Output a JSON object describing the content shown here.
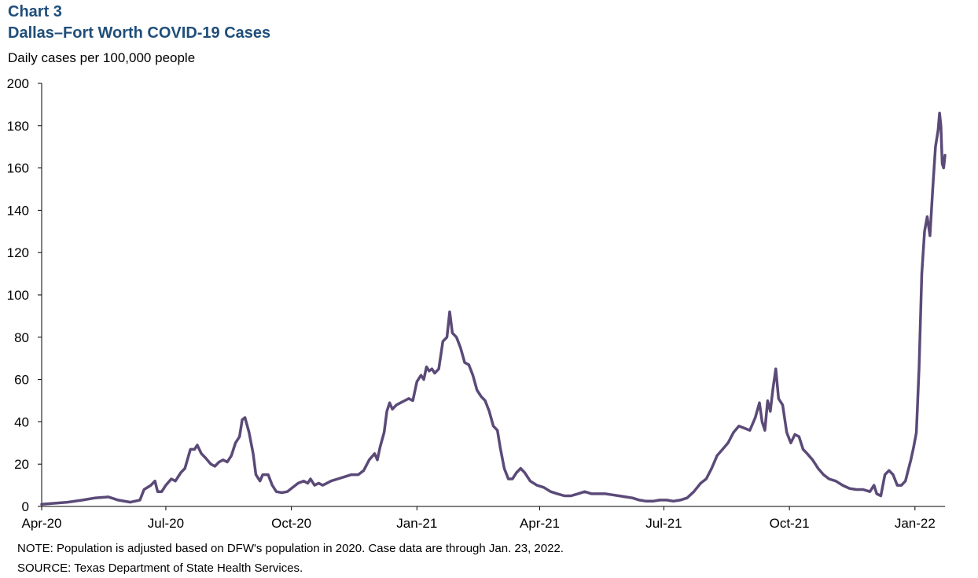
{
  "chart_label": "Chart 3",
  "chart_title": "Dallas–Fort Worth COVID-19 Cases",
  "chart_subtitle": "Daily cases per 100,000 people",
  "note": "NOTE: Population is adjusted based on DFW's population in 2020. Case data are through Jan. 23, 2022.",
  "source": "SOURCE: Texas Department of State Health Services.",
  "chart_data": {
    "type": "line",
    "title": "Dallas–Fort Worth COVID-19 Cases",
    "ylabel": "Daily cases per 100,000 people",
    "xlabel": "",
    "x_range": [
      "2020-04-01",
      "2022-01-23"
    ],
    "ylim": [
      0,
      200
    ],
    "y_ticks": [
      0,
      20,
      40,
      60,
      80,
      100,
      120,
      140,
      160,
      180,
      200
    ],
    "x_ticks": [
      {
        "date": "2020-04-01",
        "label": "Apr-20"
      },
      {
        "date": "2020-07-01",
        "label": "Jul-20"
      },
      {
        "date": "2020-10-01",
        "label": "Oct-20"
      },
      {
        "date": "2021-01-01",
        "label": "Jan-21"
      },
      {
        "date": "2021-04-01",
        "label": "Apr-21"
      },
      {
        "date": "2021-07-01",
        "label": "Jul-21"
      },
      {
        "date": "2021-10-01",
        "label": "Oct-21"
      },
      {
        "date": "2022-01-01",
        "label": "Jan-22"
      }
    ],
    "grid": false,
    "line_color": "#5b4a78",
    "series": [
      {
        "points": [
          [
            "2020-04-01",
            1
          ],
          [
            "2020-04-10",
            1.5
          ],
          [
            "2020-04-20",
            2
          ],
          [
            "2020-05-01",
            3
          ],
          [
            "2020-05-10",
            4
          ],
          [
            "2020-05-20",
            4.5
          ],
          [
            "2020-05-27",
            3
          ],
          [
            "2020-06-05",
            2
          ],
          [
            "2020-06-12",
            3
          ],
          [
            "2020-06-15",
            8
          ],
          [
            "2020-06-20",
            10
          ],
          [
            "2020-06-23",
            12
          ],
          [
            "2020-06-25",
            7
          ],
          [
            "2020-06-28",
            7
          ],
          [
            "2020-07-01",
            10
          ],
          [
            "2020-07-05",
            13
          ],
          [
            "2020-07-08",
            12
          ],
          [
            "2020-07-12",
            16
          ],
          [
            "2020-07-15",
            18
          ],
          [
            "2020-07-19",
            27
          ],
          [
            "2020-07-22",
            27
          ],
          [
            "2020-07-24",
            29
          ],
          [
            "2020-07-27",
            25
          ],
          [
            "2020-07-30",
            23
          ],
          [
            "2020-08-03",
            20
          ],
          [
            "2020-08-06",
            19
          ],
          [
            "2020-08-09",
            21
          ],
          [
            "2020-08-12",
            22
          ],
          [
            "2020-08-15",
            21
          ],
          [
            "2020-08-18",
            24
          ],
          [
            "2020-08-21",
            30
          ],
          [
            "2020-08-24",
            33
          ],
          [
            "2020-08-26",
            41
          ],
          [
            "2020-08-28",
            42
          ],
          [
            "2020-08-31",
            35
          ],
          [
            "2020-09-03",
            25
          ],
          [
            "2020-09-05",
            15
          ],
          [
            "2020-09-08",
            12
          ],
          [
            "2020-09-10",
            15
          ],
          [
            "2020-09-14",
            15
          ],
          [
            "2020-09-17",
            10
          ],
          [
            "2020-09-20",
            7
          ],
          [
            "2020-09-24",
            6.5
          ],
          [
            "2020-09-28",
            7
          ],
          [
            "2020-10-02",
            9
          ],
          [
            "2020-10-06",
            11
          ],
          [
            "2020-10-10",
            12
          ],
          [
            "2020-10-13",
            11
          ],
          [
            "2020-10-15",
            13
          ],
          [
            "2020-10-18",
            10
          ],
          [
            "2020-10-21",
            11
          ],
          [
            "2020-10-24",
            10
          ],
          [
            "2020-10-27",
            11
          ],
          [
            "2020-10-30",
            12
          ],
          [
            "2020-11-04",
            13
          ],
          [
            "2020-11-09",
            14
          ],
          [
            "2020-11-14",
            15
          ],
          [
            "2020-11-19",
            15
          ],
          [
            "2020-11-23",
            17
          ],
          [
            "2020-11-27",
            22
          ],
          [
            "2020-12-01",
            25
          ],
          [
            "2020-12-03",
            22
          ],
          [
            "2020-12-05",
            28
          ],
          [
            "2020-12-08",
            35
          ],
          [
            "2020-12-10",
            45
          ],
          [
            "2020-12-12",
            49
          ],
          [
            "2020-12-14",
            46
          ],
          [
            "2020-12-17",
            48
          ],
          [
            "2020-12-20",
            49
          ],
          [
            "2020-12-23",
            50
          ],
          [
            "2020-12-26",
            51
          ],
          [
            "2020-12-29",
            50
          ],
          [
            "2021-01-01",
            59
          ],
          [
            "2021-01-04",
            62
          ],
          [
            "2021-01-06",
            60
          ],
          [
            "2021-01-08",
            66
          ],
          [
            "2021-01-10",
            64
          ],
          [
            "2021-01-12",
            65
          ],
          [
            "2021-01-14",
            63
          ],
          [
            "2021-01-17",
            65
          ],
          [
            "2021-01-20",
            78
          ],
          [
            "2021-01-23",
            80
          ],
          [
            "2021-01-25",
            92
          ],
          [
            "2021-01-27",
            82
          ],
          [
            "2021-01-30",
            80
          ],
          [
            "2021-02-02",
            75
          ],
          [
            "2021-02-05",
            68
          ],
          [
            "2021-02-08",
            67
          ],
          [
            "2021-02-11",
            62
          ],
          [
            "2021-02-14",
            55
          ],
          [
            "2021-02-17",
            52
          ],
          [
            "2021-02-20",
            50
          ],
          [
            "2021-02-23",
            45
          ],
          [
            "2021-02-26",
            38
          ],
          [
            "2021-03-01",
            36
          ],
          [
            "2021-03-03",
            28
          ],
          [
            "2021-03-06",
            18
          ],
          [
            "2021-03-09",
            13
          ],
          [
            "2021-03-12",
            13
          ],
          [
            "2021-03-15",
            16
          ],
          [
            "2021-03-18",
            18
          ],
          [
            "2021-03-21",
            16
          ],
          [
            "2021-03-25",
            12
          ],
          [
            "2021-03-30",
            10
          ],
          [
            "2021-04-04",
            9
          ],
          [
            "2021-04-09",
            7
          ],
          [
            "2021-04-14",
            6
          ],
          [
            "2021-04-19",
            5
          ],
          [
            "2021-04-24",
            5
          ],
          [
            "2021-04-29",
            6
          ],
          [
            "2021-05-04",
            7
          ],
          [
            "2021-05-09",
            6
          ],
          [
            "2021-05-14",
            6
          ],
          [
            "2021-05-19",
            6
          ],
          [
            "2021-05-24",
            5.5
          ],
          [
            "2021-05-29",
            5
          ],
          [
            "2021-06-03",
            4.5
          ],
          [
            "2021-06-08",
            4
          ],
          [
            "2021-06-13",
            3
          ],
          [
            "2021-06-18",
            2.5
          ],
          [
            "2021-06-23",
            2.5
          ],
          [
            "2021-06-28",
            3
          ],
          [
            "2021-07-03",
            3
          ],
          [
            "2021-07-08",
            2.5
          ],
          [
            "2021-07-13",
            3
          ],
          [
            "2021-07-18",
            4
          ],
          [
            "2021-07-23",
            7
          ],
          [
            "2021-07-28",
            11
          ],
          [
            "2021-08-01",
            13
          ],
          [
            "2021-08-05",
            18
          ],
          [
            "2021-08-09",
            24
          ],
          [
            "2021-08-13",
            27
          ],
          [
            "2021-08-17",
            30
          ],
          [
            "2021-08-21",
            35
          ],
          [
            "2021-08-25",
            38
          ],
          [
            "2021-08-29",
            37
          ],
          [
            "2021-09-02",
            36
          ],
          [
            "2021-09-06",
            42
          ],
          [
            "2021-09-09",
            49
          ],
          [
            "2021-09-11",
            40
          ],
          [
            "2021-09-13",
            36
          ],
          [
            "2021-09-15",
            50
          ],
          [
            "2021-09-17",
            45
          ],
          [
            "2021-09-19",
            56
          ],
          [
            "2021-09-21",
            65
          ],
          [
            "2021-09-23",
            51
          ],
          [
            "2021-09-26",
            48
          ],
          [
            "2021-09-29",
            35
          ],
          [
            "2021-10-02",
            30
          ],
          [
            "2021-10-05",
            34
          ],
          [
            "2021-10-08",
            33
          ],
          [
            "2021-10-11",
            27
          ],
          [
            "2021-10-14",
            25
          ],
          [
            "2021-10-18",
            22
          ],
          [
            "2021-10-22",
            18
          ],
          [
            "2021-10-26",
            15
          ],
          [
            "2021-10-30",
            13
          ],
          [
            "2021-11-04",
            12
          ],
          [
            "2021-11-09",
            10
          ],
          [
            "2021-11-14",
            8.5
          ],
          [
            "2021-11-19",
            8
          ],
          [
            "2021-11-24",
            8
          ],
          [
            "2021-11-29",
            7
          ],
          [
            "2021-12-02",
            10
          ],
          [
            "2021-12-04",
            6
          ],
          [
            "2021-12-07",
            5
          ],
          [
            "2021-12-10",
            15
          ],
          [
            "2021-12-13",
            17
          ],
          [
            "2021-12-16",
            15
          ],
          [
            "2021-12-19",
            10
          ],
          [
            "2021-12-22",
            10
          ],
          [
            "2021-12-25",
            12
          ],
          [
            "2021-12-27",
            17
          ],
          [
            "2021-12-29",
            22
          ],
          [
            "2021-12-31",
            28
          ],
          [
            "2022-01-02",
            35
          ],
          [
            "2022-01-04",
            65
          ],
          [
            "2022-01-06",
            110
          ],
          [
            "2022-01-08",
            130
          ],
          [
            "2022-01-10",
            137
          ],
          [
            "2022-01-12",
            128
          ],
          [
            "2022-01-14",
            150
          ],
          [
            "2022-01-16",
            170
          ],
          [
            "2022-01-18",
            178
          ],
          [
            "2022-01-19",
            186
          ],
          [
            "2022-01-20",
            180
          ],
          [
            "2022-01-21",
            162
          ],
          [
            "2022-01-22",
            160
          ],
          [
            "2022-01-23",
            166
          ]
        ]
      }
    ]
  }
}
